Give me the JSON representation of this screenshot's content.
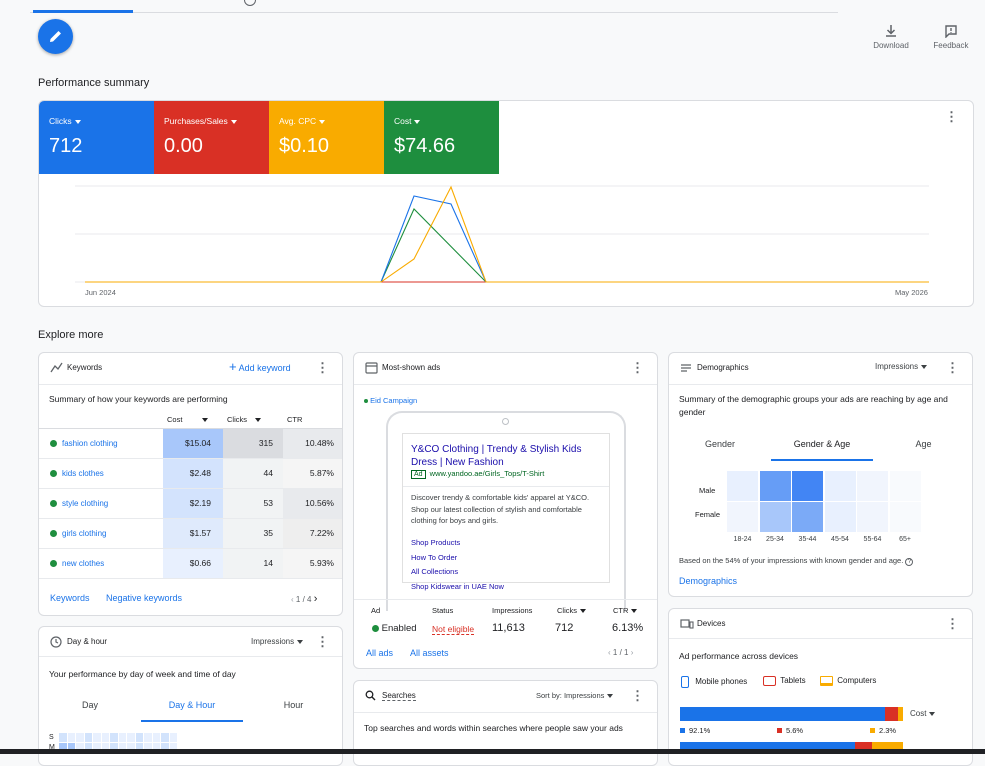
{
  "toolbar": {
    "download": "Download",
    "feedback": "Feedback"
  },
  "performance": {
    "title": "Performance summary",
    "metrics": [
      {
        "label": "Clicks",
        "value": "712",
        "color": "#1a73e8"
      },
      {
        "label": "Purchases/Sales",
        "value": "0.00",
        "color": "#d93025"
      },
      {
        "label": "Avg. CPC",
        "value": "$0.10",
        "color": "#f9ab00"
      },
      {
        "label": "Cost",
        "value": "$74.66",
        "color": "#1e8e3e"
      }
    ],
    "x_start": "Jun 2024",
    "x_end": "May 2026"
  },
  "explore_title": "Explore more",
  "keywords": {
    "title": "Keywords",
    "add": "Add keyword",
    "summary": "Summary of how your keywords are performing",
    "columns": [
      "Cost",
      "Clicks",
      "CTR"
    ],
    "rows": [
      {
        "keyword": "fashion clothing",
        "cost": "$15.04",
        "clicks": "315",
        "ctr": "10.48%"
      },
      {
        "keyword": "kids clothes",
        "cost": "$2.48",
        "clicks": "44",
        "ctr": "5.87%"
      },
      {
        "keyword": "style clothing",
        "cost": "$2.19",
        "clicks": "53",
        "ctr": "10.56%"
      },
      {
        "keyword": "girls clothing",
        "cost": "$1.57",
        "clicks": "35",
        "ctr": "7.22%"
      },
      {
        "keyword": "new clothes",
        "cost": "$0.66",
        "clicks": "14",
        "ctr": "5.93%"
      }
    ],
    "footer_links": [
      "Keywords",
      "Negative keywords"
    ],
    "pager": "1 / 4"
  },
  "ads": {
    "title": "Most-shown ads",
    "campaign": "Eid Campaign",
    "headline": "Y&CO Clothing | Trendy & Stylish Kids Dress | New Fashion",
    "ad_badge": "Ad",
    "url": "www.yandoo.ae/Girls_Tops/T-Shirt",
    "description": "Discover trendy & comfortable kids' apparel at Y&CO. Shop our latest collection of stylish and comfortable clothing for boys and girls.",
    "sitelinks": [
      "Shop Products",
      "How To Order",
      "All Collections",
      "Shop Kidswear in UAE Now"
    ],
    "headers": [
      "Ad",
      "Status",
      "Impressions",
      "Clicks",
      "CTR"
    ],
    "values": {
      "ad": "Enabled",
      "status": "Not eligible",
      "impressions": "11,613",
      "clicks": "712",
      "ctr": "6.13%"
    },
    "footer_links": [
      "All ads",
      "All assets"
    ],
    "pager": "1 / 1"
  },
  "demographics": {
    "title": "Demographics",
    "metric": "Impressions",
    "summary": "Summary of the demographic groups your ads are reaching by age and gender",
    "tabs": [
      "Gender",
      "Gender & Age",
      "Age"
    ],
    "rows": [
      "Male",
      "Female"
    ],
    "ages": [
      "18-24",
      "25-34",
      "35-44",
      "45-54",
      "55-64",
      "65+"
    ],
    "note": "Based on the 54% of your impressions with known gender and age.",
    "link": "Demographics"
  },
  "dayhour": {
    "title": "Day & hour",
    "metric": "Impressions",
    "summary": "Your performance by day of week and time of day",
    "tabs": [
      "Day",
      "Day & Hour",
      "Hour"
    ],
    "days": [
      "S",
      "M"
    ]
  },
  "devices": {
    "title": "Devices",
    "summary": "Ad performance across devices",
    "legend": [
      "Mobile phones",
      "Tablets",
      "Computers"
    ],
    "metric": "Cost",
    "pcts": [
      "92.1%",
      "5.6%",
      "2.3%"
    ],
    "shares": [
      0.921,
      0.056,
      0.023
    ]
  },
  "searches": {
    "title": "Searches",
    "sort_label": "Sort by:",
    "sort_value": "Impressions",
    "summary": "Top searches and words within searches where people saw your ads"
  }
}
